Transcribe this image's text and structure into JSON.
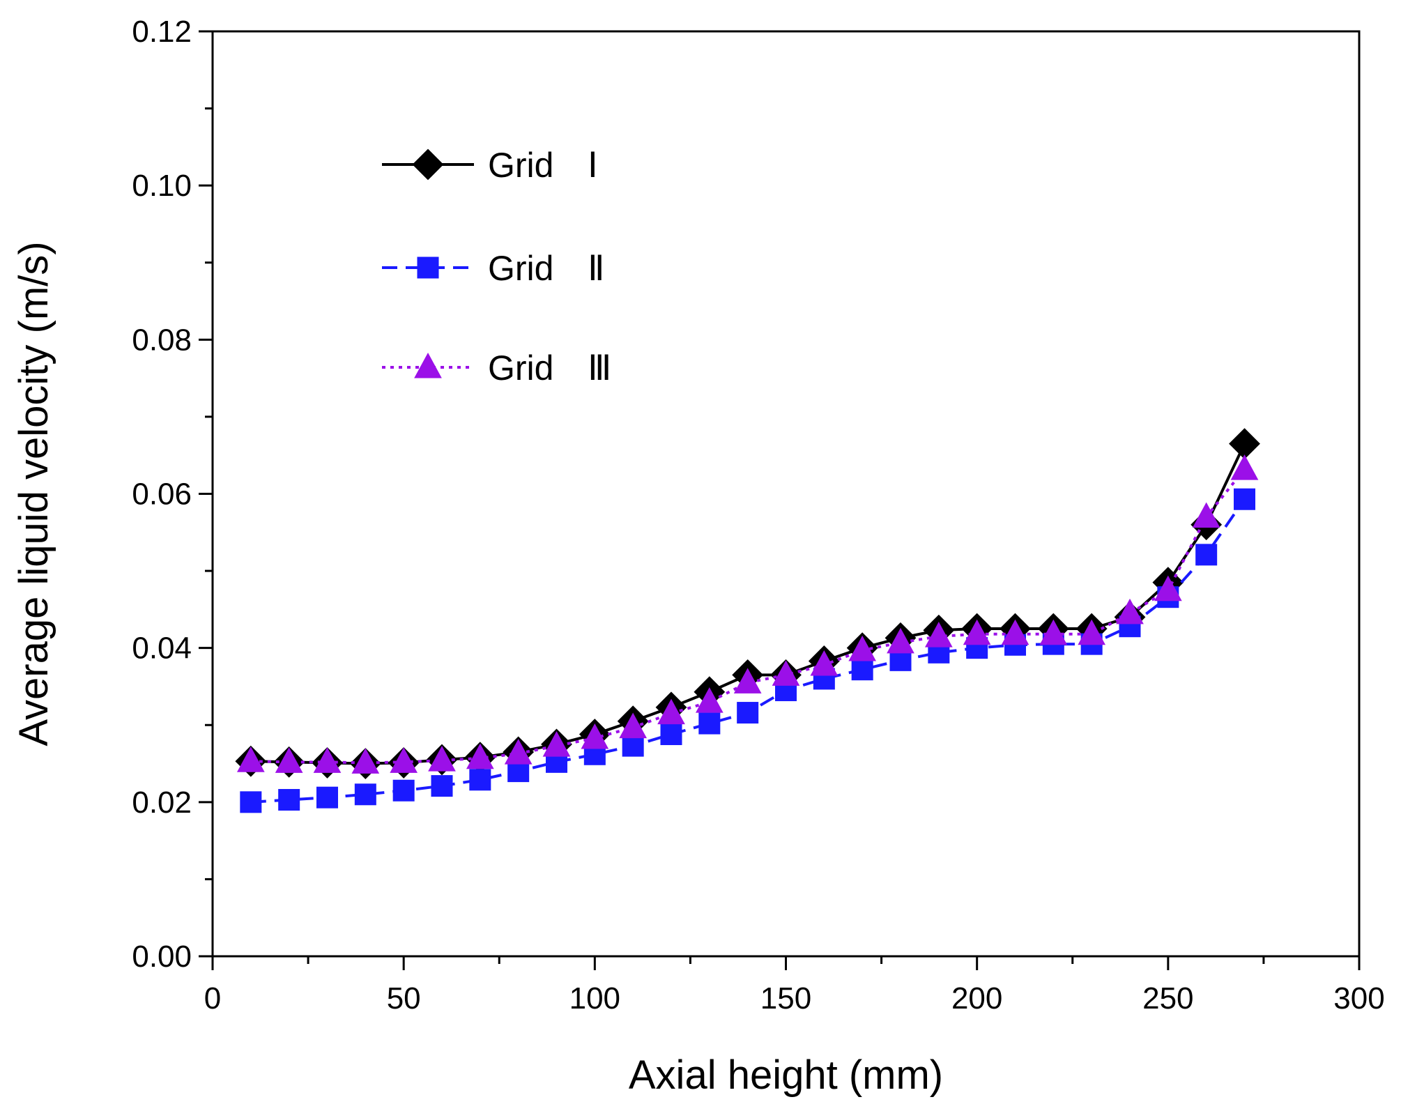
{
  "chart_data": {
    "type": "line",
    "xlabel": "Axial height (mm)",
    "ylabel": "Average liquid velocity (m/s)",
    "xlim": [
      0,
      300
    ],
    "ylim": [
      0,
      0.12
    ],
    "xticks": [
      "0",
      "50",
      "100",
      "150",
      "200",
      "250",
      "300"
    ],
    "yticks": [
      "0.00",
      "0.02",
      "0.04",
      "0.06",
      "0.08",
      "0.10",
      "0.12"
    ],
    "grid": false,
    "legend_position": "top-left",
    "x": [
      10,
      20,
      30,
      40,
      50,
      60,
      70,
      80,
      90,
      100,
      110,
      120,
      130,
      140,
      150,
      160,
      170,
      180,
      190,
      200,
      210,
      220,
      230,
      240,
      250,
      260,
      270
    ],
    "series": [
      {
        "name": "Grid",
        "numeral": "Ⅰ",
        "color": "#000000",
        "marker": "diamond",
        "line": "solid",
        "values": [
          0.0253,
          0.0252,
          0.0251,
          0.025,
          0.0251,
          0.0255,
          0.0258,
          0.0265,
          0.0275,
          0.0288,
          0.0305,
          0.0323,
          0.0343,
          0.0365,
          0.0365,
          0.0383,
          0.04,
          0.0413,
          0.0423,
          0.0425,
          0.0425,
          0.0425,
          0.0425,
          0.044,
          0.0485,
          0.056,
          0.0665
        ]
      },
      {
        "name": "Grid",
        "numeral": "Ⅱ",
        "color": "#1a1aff",
        "marker": "square",
        "line": "dashed",
        "values": [
          0.02,
          0.0203,
          0.0206,
          0.021,
          0.0215,
          0.0221,
          0.0229,
          0.024,
          0.0252,
          0.0262,
          0.0273,
          0.0288,
          0.0302,
          0.0316,
          0.0345,
          0.036,
          0.0372,
          0.0384,
          0.0394,
          0.04,
          0.0404,
          0.0405,
          0.0405,
          0.0428,
          0.0466,
          0.0521,
          0.0593
        ]
      },
      {
        "name": "Grid",
        "numeral": "Ⅲ",
        "color": "#9b10e8",
        "marker": "triangle",
        "line": "dotted",
        "values": [
          0.0253,
          0.0252,
          0.0252,
          0.0251,
          0.0252,
          0.0254,
          0.0257,
          0.0263,
          0.0273,
          0.0283,
          0.0297,
          0.0315,
          0.033,
          0.0355,
          0.0365,
          0.0378,
          0.0397,
          0.0407,
          0.0415,
          0.0418,
          0.0418,
          0.0418,
          0.0418,
          0.0445,
          0.0475,
          0.057,
          0.0632
        ]
      }
    ]
  }
}
